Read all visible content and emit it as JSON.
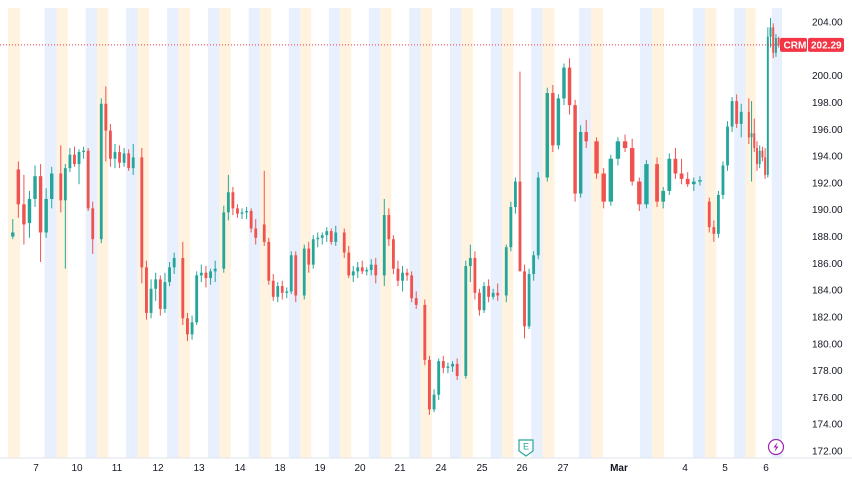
{
  "chart_data": {
    "type": "candlestick",
    "symbol": "CRM",
    "last_price": "202.29",
    "ylim": [
      171.5,
      205.0
    ],
    "y_ticks": [
      "204.00",
      "202.00",
      "200.00",
      "198.00",
      "196.00",
      "194.00",
      "192.00",
      "190.00",
      "188.00",
      "186.00",
      "184.00",
      "182.00",
      "180.00",
      "178.00",
      "176.00",
      "174.00",
      "172.00"
    ],
    "x_tick_labels": [
      "7",
      "10",
      "11",
      "12",
      "13",
      "14",
      "18",
      "19",
      "20",
      "21",
      "24",
      "25",
      "26",
      "27",
      "Mar",
      "4",
      "5",
      "6"
    ],
    "grid": false,
    "event_markers": [
      {
        "label": "E",
        "session": "26"
      },
      {
        "label": "",
        "icon": "lightning-icon",
        "session": "6"
      }
    ],
    "sessions": [
      {
        "label": "7",
        "bars": [
          [
            188,
            189.3,
            187.8,
            188.3
          ],
          [
            193,
            193.6,
            189.4,
            190.4
          ],
          [
            190.4,
            192.6,
            187.4,
            188.9
          ],
          [
            189,
            191.4,
            187.9,
            190.8
          ],
          [
            190.8,
            193.3,
            190.2,
            192.5
          ],
          [
            192.5,
            193.4,
            186.1,
            188.3
          ],
          [
            188.3,
            191.6,
            187.9,
            190.8
          ],
          [
            190.8,
            193.2,
            190.1,
            192.7
          ]
        ]
      },
      {
        "label": "10",
        "bars": [
          [
            192.7,
            194.8,
            189.8,
            190.7
          ],
          [
            190.7,
            193.4,
            185.6,
            193.1
          ],
          [
            193.1,
            194.6,
            192.8,
            194.1
          ],
          [
            194.1,
            194.7,
            193.2,
            193.4
          ],
          [
            193.4,
            194.5,
            191.9,
            194.3
          ],
          [
            194.3,
            194.7,
            193.8,
            194.4
          ],
          [
            194.4,
            194.6,
            189.9,
            190.1
          ],
          [
            190.1,
            190.6,
            186.7,
            187.8
          ]
        ]
      },
      {
        "label": "11",
        "bars": [
          [
            187.8,
            198.3,
            187.5,
            197.9
          ],
          [
            197.9,
            199.2,
            193.6,
            195.9
          ],
          [
            195.9,
            196.4,
            193.2,
            193.8
          ],
          [
            193.8,
            194.9,
            193.1,
            194.3
          ],
          [
            194.3,
            194.8,
            193.1,
            193.5
          ],
          [
            193.5,
            194.6,
            193.2,
            194.2
          ],
          [
            194.2,
            194.5,
            192.9,
            193.1
          ],
          [
            193.1,
            194.9,
            192.6,
            193.9
          ]
        ]
      },
      {
        "label": "12",
        "bars": [
          [
            193.9,
            194.6,
            184.5,
            185.7
          ],
          [
            185.7,
            186.2,
            181.8,
            182.3
          ],
          [
            182.3,
            184.8,
            181.9,
            184.1
          ],
          [
            184.1,
            185.3,
            183.2,
            184.8
          ],
          [
            184.8,
            185.1,
            182.1,
            182.6
          ],
          [
            182.6,
            185.3,
            182.3,
            184.6
          ],
          [
            184.6,
            186.1,
            184.3,
            185.7
          ],
          [
            185.7,
            186.8,
            185.2,
            186.4
          ]
        ]
      },
      {
        "label": "13",
        "bars": [
          [
            186.4,
            187.6,
            181.4,
            181.9
          ],
          [
            181.9,
            182.3,
            180.2,
            180.7
          ],
          [
            180.7,
            182.1,
            180.3,
            181.6
          ],
          [
            181.6,
            185.4,
            181.4,
            185.1
          ],
          [
            185.1,
            185.9,
            184.6,
            185.3
          ],
          [
            185.3,
            185.8,
            184.2,
            184.9
          ],
          [
            184.9,
            185.6,
            184.4,
            185.4
          ],
          [
            185.4,
            186.2,
            184.6,
            185.6
          ]
        ]
      },
      {
        "label": "14",
        "bars": [
          [
            185.6,
            190.3,
            185.3,
            189.8
          ],
          [
            189.8,
            192.6,
            189.2,
            191.3
          ],
          [
            191.3,
            191.7,
            189.6,
            190.1
          ],
          [
            190.1,
            190.4,
            189.4,
            189.7
          ],
          [
            189.7,
            190.1,
            189.3,
            189.8
          ],
          [
            189.8,
            190.2,
            189.3,
            189.9
          ],
          [
            189.9,
            190.1,
            188.3,
            188.6
          ],
          [
            188.6,
            189.3,
            187.4,
            187.9
          ]
        ]
      },
      {
        "label": "18",
        "bars": [
          [
            188.9,
            192.9,
            187.3,
            187.6
          ],
          [
            187.6,
            187.9,
            184.4,
            184.7
          ],
          [
            184.7,
            185.2,
            183.2,
            183.5
          ],
          [
            183.5,
            184.6,
            183.1,
            184.3
          ],
          [
            184.3,
            184.7,
            183.3,
            183.8
          ],
          [
            183.8,
            184.2,
            183.4,
            183.9
          ],
          [
            183.9,
            186.9,
            183.7,
            186.6
          ],
          [
            186.6,
            186.9,
            183.1,
            183.6
          ]
        ]
      },
      {
        "label": "19",
        "bars": [
          [
            183.6,
            187.4,
            183.3,
            187.1
          ],
          [
            187.1,
            187.6,
            185.3,
            185.9
          ],
          [
            185.9,
            188.1,
            185.6,
            187.8
          ],
          [
            187.8,
            188.3,
            187.2,
            187.9
          ],
          [
            187.9,
            188.3,
            187.4,
            188.1
          ],
          [
            188.1,
            188.7,
            187.6,
            188.4
          ],
          [
            188.4,
            188.6,
            187.4,
            187.6
          ],
          [
            187.6,
            188.8,
            187.3,
            188.3
          ]
        ]
      },
      {
        "label": "20",
        "bars": [
          [
            188.3,
            188.6,
            186.4,
            186.8
          ],
          [
            186.8,
            187.3,
            184.9,
            185.1
          ],
          [
            185.1,
            185.8,
            184.6,
            185.4
          ],
          [
            185.4,
            186.1,
            184.9,
            185.7
          ],
          [
            185.7,
            186.2,
            185.2,
            185.4
          ],
          [
            185.4,
            185.7,
            185.1,
            185.5
          ],
          [
            185.5,
            186.3,
            185.1,
            185.9
          ],
          [
            185.9,
            186.4,
            184.5,
            185.1
          ]
        ]
      },
      {
        "label": "21",
        "bars": [
          [
            185.1,
            190.8,
            184.3,
            189.6
          ],
          [
            189.6,
            190.1,
            187.3,
            187.8
          ],
          [
            187.8,
            188.1,
            185.2,
            185.6
          ],
          [
            185.6,
            186.2,
            184.3,
            184.7
          ],
          [
            184.7,
            185.8,
            183.9,
            185.3
          ],
          [
            185.3,
            185.6,
            184.7,
            185.1
          ],
          [
            185.1,
            185.4,
            183.1,
            183.4
          ],
          [
            183.4,
            183.9,
            182.6,
            182.9
          ]
        ]
      },
      {
        "label": "24",
        "bars": [
          [
            182.9,
            183.3,
            178.4,
            178.8
          ],
          [
            178.8,
            179.1,
            174.7,
            175.1
          ],
          [
            175.1,
            176.6,
            174.9,
            176.2
          ],
          [
            176.2,
            178.9,
            175.8,
            178.7
          ],
          [
            178.7,
            179.1,
            177.8,
            178.2
          ],
          [
            178.2,
            178.6,
            177.8,
            178.3
          ],
          [
            178.3,
            178.7,
            177.9,
            178.5
          ],
          [
            178.5,
            178.9,
            177.3,
            177.6
          ]
        ]
      },
      {
        "label": "25",
        "bars": [
          [
            177.6,
            186.2,
            177.4,
            185.8
          ],
          [
            185.8,
            187.4,
            184.6,
            186.4
          ],
          [
            186.4,
            186.9,
            183.3,
            183.8
          ],
          [
            183.8,
            184.1,
            182.1,
            182.5
          ],
          [
            182.5,
            184.6,
            182.3,
            184.3
          ],
          [
            184.3,
            184.8,
            183.1,
            183.5
          ],
          [
            183.5,
            184.1,
            183.3,
            183.8
          ],
          [
            183.8,
            184.5,
            183.2,
            183.6
          ]
        ]
      },
      {
        "label": "26",
        "bars": [
          [
            183.6,
            187.4,
            183.1,
            187.2
          ],
          [
            187.2,
            190.6,
            186.9,
            190.2
          ],
          [
            190.2,
            192.4,
            189.7,
            192.1
          ],
          [
            192.1,
            200.3,
            191.6,
            185.4
          ],
          [
            185.4,
            185.9,
            180.4,
            181.3
          ],
          [
            181.3,
            185.6,
            181.1,
            185.2
          ],
          [
            185.2,
            186.9,
            184.7,
            186.6
          ],
          [
            186.6,
            192.8,
            186.3,
            192.4
          ]
        ]
      },
      {
        "label": "27",
        "bars": [
          [
            192.4,
            199.1,
            192.1,
            198.7
          ],
          [
            198.7,
            199.3,
            194.3,
            194.8
          ],
          [
            194.8,
            198.6,
            194.5,
            198.3
          ],
          [
            198.3,
            200.9,
            197.8,
            200.6
          ],
          [
            200.6,
            201.3,
            197.1,
            197.8
          ],
          [
            197.8,
            198.2,
            190.6,
            191.2
          ],
          [
            191.2,
            196.3,
            190.9,
            195.8
          ],
          [
            195.8,
            196.7,
            194.6,
            195.1
          ]
        ]
      },
      {
        "label": "Mar",
        "bars": [
          [
            195.1,
            195.4,
            192.3,
            192.7
          ],
          [
            192.7,
            193.1,
            190.1,
            190.6
          ],
          [
            190.6,
            194.1,
            190.3,
            193.8
          ],
          [
            193.8,
            195.4,
            193.3,
            195.1
          ],
          [
            195.1,
            195.6,
            194.3,
            194.6
          ],
          [
            194.6,
            195.3,
            191.8,
            192.1
          ],
          [
            192.1,
            192.4,
            189.9,
            190.4
          ],
          [
            190.4,
            193.7,
            190.1,
            193.4
          ]
        ]
      },
      {
        "label": "4",
        "bars": [
          [
            193.4,
            193.9,
            190.2,
            190.6
          ],
          [
            190.6,
            191.7,
            190.1,
            191.4
          ],
          [
            191.4,
            194.2,
            191.1,
            193.8
          ],
          [
            193.8,
            194.6,
            192.3,
            192.7
          ],
          [
            192.7,
            193.8,
            191.9,
            192.3
          ],
          [
            192.3,
            192.8,
            191.7,
            191.9
          ],
          [
            191.9,
            192.4,
            191.4,
            192.1
          ],
          [
            192.1,
            192.5,
            191.8,
            192.2
          ]
        ]
      },
      {
        "label": "5",
        "bars": [
          [
            190.6,
            190.9,
            188.3,
            188.7
          ],
          [
            188.7,
            189.2,
            187.6,
            188.2
          ],
          [
            188.2,
            191.4,
            187.9,
            191.1
          ],
          [
            191.1,
            193.6,
            190.8,
            193.3
          ],
          [
            193.3,
            196.6,
            192.9,
            196.2
          ],
          [
            196.2,
            198.4,
            195.8,
            198.1
          ],
          [
            198.1,
            198.6,
            196.1,
            196.4
          ],
          [
            196.4,
            197.9,
            195.4,
            197.3
          ]
        ]
      },
      {
        "label": "6",
        "bars": [
          [
            197.3,
            198.3,
            194.9,
            195.4
          ],
          [
            195.4,
            198.1,
            192.1,
            195.7
          ],
          [
            195.7,
            196.8,
            194.3,
            194.6
          ],
          [
            194.6,
            195.1,
            192.9,
            193.4
          ],
          [
            193.4,
            194.8,
            193.1,
            194.4
          ],
          [
            194.4,
            194.7,
            193.6,
            193.9
          ],
          [
            193.9,
            194.6,
            192.3,
            192.6
          ],
          [
            192.6,
            203.6,
            192.4,
            202.9
          ],
          [
            202.9,
            204.3,
            202.1,
            203.6
          ],
          [
            203.6,
            203.9,
            201.3,
            201.7
          ],
          [
            201.7,
            203.1,
            201.4,
            202.8
          ],
          [
            202.8,
            202.9,
            202.1,
            202.29
          ]
        ]
      }
    ],
    "colors": {
      "up": "#26a69a",
      "down": "#ef5350",
      "band_orange": "#fff3e0",
      "band_blue": "#e8f0fe",
      "price_line": "#f23645",
      "tag_bg": "#f23645",
      "earnings_marker": "#26a69a",
      "lightning_marker": "#9c27b0",
      "axis_text": "#131722"
    }
  }
}
